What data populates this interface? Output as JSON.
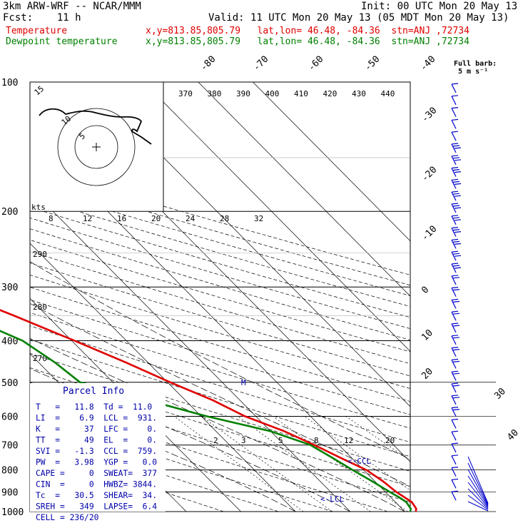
{
  "header": {
    "model": "3km ARW-WRF -- NCAR/MMM",
    "init": "Init: 00 UTC Mon 20 May 13",
    "fcst": "Fcst:    11 h",
    "valid": "Valid: 11 UTC Mon 20 May 13 (05 MDT Mon 20 May 13)",
    "temp_label": "Temperature",
    "temp_loc": "x,y=813.85,805.79   lat,lon= 46.48, -84.36  stn=ANJ ,72734",
    "dew_label": "Dewpoint temperature",
    "dew_loc": "x,y=813.85,805.79   lat,lon= 46.48, -84.36  stn=ANJ ,72734"
  },
  "colors": {
    "temperature": "#e00000",
    "dewpoint": "#008000",
    "barbs": "#0000cc",
    "text_blue": "#0000aa"
  },
  "barb_legend": {
    "title": "Full barb:",
    "value": "5 m s⁻¹"
  },
  "hodograph": {
    "axis_label": "kts",
    "ring_labels": [
      "5",
      "10",
      "15"
    ]
  },
  "chart_data": {
    "type": "line",
    "xlabel": "",
    "ylabel": "",
    "y_scale": "log",
    "y_axis": {
      "label_values": [
        100,
        200,
        300,
        400,
        500,
        600,
        700,
        800,
        900,
        1000
      ],
      "range": [
        100,
        1000
      ]
    },
    "isotherm_labels": [
      "-80",
      "-70",
      "-60",
      "-50",
      "-40",
      "-30",
      "-20",
      "-10",
      "0",
      "10",
      "20",
      "30",
      "40"
    ],
    "theta_e_labels": [
      "370",
      "380",
      "390",
      "400",
      "410",
      "420",
      "430",
      "440"
    ],
    "theta_labels": [
      "290",
      "280",
      "270"
    ],
    "mixing_ratio_labels": [
      "2",
      "3",
      "5",
      "8",
      "12",
      "20"
    ],
    "theta_e_ticks_200": [
      "8",
      "12",
      "16",
      "20",
      "24",
      "28",
      "32"
    ],
    "series": [
      {
        "name": "Temperature",
        "color": "#e00000",
        "points": [
          [
            1000,
            12.0
          ],
          [
            985,
            12.6
          ],
          [
            950,
            13.0
          ],
          [
            925,
            12.5
          ],
          [
            900,
            12.0
          ],
          [
            850,
            11.5
          ],
          [
            800,
            10.5
          ],
          [
            750,
            8.0
          ],
          [
            700,
            5.5
          ],
          [
            650,
            2.5
          ],
          [
            600,
            -2.0
          ],
          [
            550,
            -5.0
          ],
          [
            500,
            -9.5
          ],
          [
            450,
            -14.0
          ],
          [
            400,
            -19.5
          ],
          [
            350,
            -26.0
          ],
          [
            300,
            -34.0
          ],
          [
            250,
            -43.5
          ],
          [
            200,
            -53.5
          ],
          [
            175,
            -59.0
          ],
          [
            160,
            -62.5
          ],
          [
            150,
            -64.0
          ],
          [
            135,
            -63.5
          ],
          [
            120,
            -62.0
          ],
          [
            110,
            -61.5
          ],
          [
            100,
            -62.0
          ]
        ]
      },
      {
        "name": "Dewpoint temperature",
        "color": "#008000",
        "points": [
          [
            1000,
            11.0
          ],
          [
            985,
            11.6
          ],
          [
            950,
            12.0
          ],
          [
            925,
            11.5
          ],
          [
            900,
            10.8
          ],
          [
            850,
            9.5
          ],
          [
            800,
            8.0
          ],
          [
            750,
            6.5
          ],
          [
            700,
            4.8
          ],
          [
            650,
            0.0
          ],
          [
            600,
            -9.0
          ],
          [
            550,
            -17.0
          ],
          [
            500,
            -26.0
          ],
          [
            450,
            -27.0
          ],
          [
            400,
            -29.0
          ],
          [
            350,
            -35.0
          ],
          [
            300,
            -43.0
          ],
          [
            250,
            -53.0
          ],
          [
            200,
            -63.0
          ],
          [
            175,
            -68.0
          ],
          [
            160,
            -72.0
          ],
          [
            150,
            -73.5
          ],
          [
            135,
            -74.0
          ],
          [
            120,
            -75.0
          ],
          [
            110,
            -76.5
          ],
          [
            100,
            -79.0
          ]
        ]
      }
    ],
    "annotations": {
      "ccl": "<-CCL",
      "lcl": "<-LCL",
      "m_marker": "M"
    }
  },
  "parcel_info": {
    "title": "Parcel Info",
    "rows": [
      "T   =   11.8  Td =  11.0",
      "LI  =    6.9  LCL =  931.",
      "K   =     37  LFC =    0.",
      "TT  =     49  EL  =    0.",
      "SVI =   -1.3  CCL =  759.",
      "PW  =   3.98  YGP =   0.0",
      "CAPE =     0  SWEAT=  377",
      "CIN  =     0  HWBZ= 3844.",
      "Tc  =   30.5  SHEAR=  34.",
      "SREH =   349  LAPSE=  6.4",
      "CELL = 236/20"
    ]
  }
}
